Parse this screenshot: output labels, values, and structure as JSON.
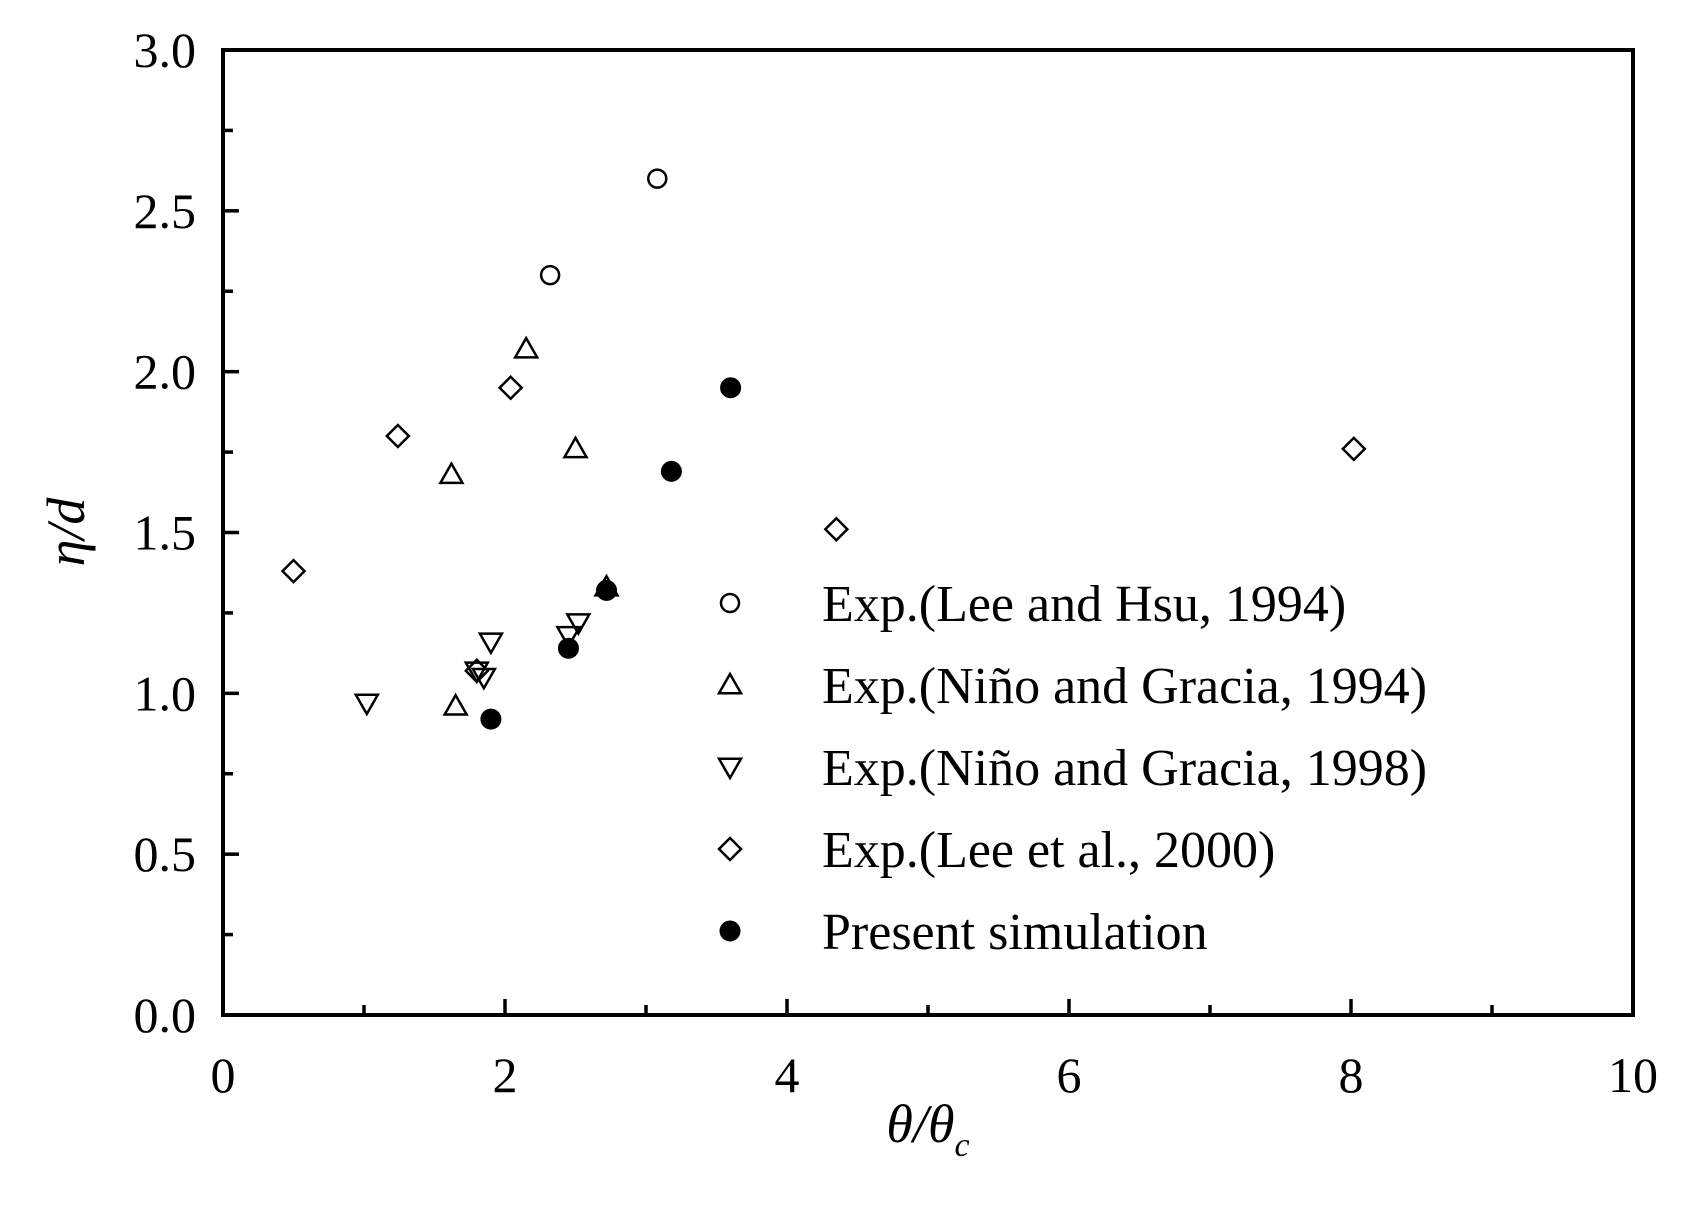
{
  "chart_data": {
    "type": "scatter",
    "xlabel": "θ/θ",
    "xlabel_sub": "c",
    "ylabel": "η/d",
    "xlim": [
      0,
      10
    ],
    "ylim": [
      0.0,
      3.0
    ],
    "xticks": [
      "0",
      "2",
      "4",
      "6",
      "8",
      "10"
    ],
    "yticks": [
      "0.0",
      "0.5",
      "1.0",
      "1.5",
      "2.0",
      "2.5",
      "3.0"
    ],
    "grid": false,
    "legend_position": "bottom-right",
    "series": [
      {
        "name": "Exp.(Lee and Hsu, 1994)",
        "marker": "circle-open",
        "points": [
          [
            2.32,
            2.3
          ],
          [
            3.08,
            2.6
          ]
        ]
      },
      {
        "name": "Exp.(Niño and Gracia, 1994)",
        "marker": "triangle-up-open",
        "points": [
          [
            1.62,
            1.68
          ],
          [
            1.65,
            0.96
          ],
          [
            2.15,
            2.07
          ],
          [
            2.5,
            1.76
          ],
          [
            2.72,
            1.33
          ]
        ]
      },
      {
        "name": "Exp.(Niño and Gracia, 1998)",
        "marker": "triangle-down-open",
        "points": [
          [
            1.02,
            0.97
          ],
          [
            1.8,
            1.07
          ],
          [
            1.85,
            1.05
          ],
          [
            1.9,
            1.16
          ],
          [
            2.45,
            1.18
          ],
          [
            2.52,
            1.22
          ]
        ]
      },
      {
        "name": "Exp.(Lee et al., 2000)",
        "marker": "diamond-open",
        "points": [
          [
            0.5,
            1.38
          ],
          [
            1.24,
            1.8
          ],
          [
            1.8,
            1.07
          ],
          [
            2.04,
            1.95
          ],
          [
            4.35,
            1.51
          ],
          [
            8.02,
            1.76
          ]
        ]
      },
      {
        "name": "Present simulation",
        "marker": "circle-filled",
        "points": [
          [
            1.9,
            0.92
          ],
          [
            2.45,
            1.14
          ],
          [
            2.72,
            1.32
          ],
          [
            3.18,
            1.69
          ],
          [
            3.6,
            1.95
          ]
        ]
      }
    ]
  }
}
